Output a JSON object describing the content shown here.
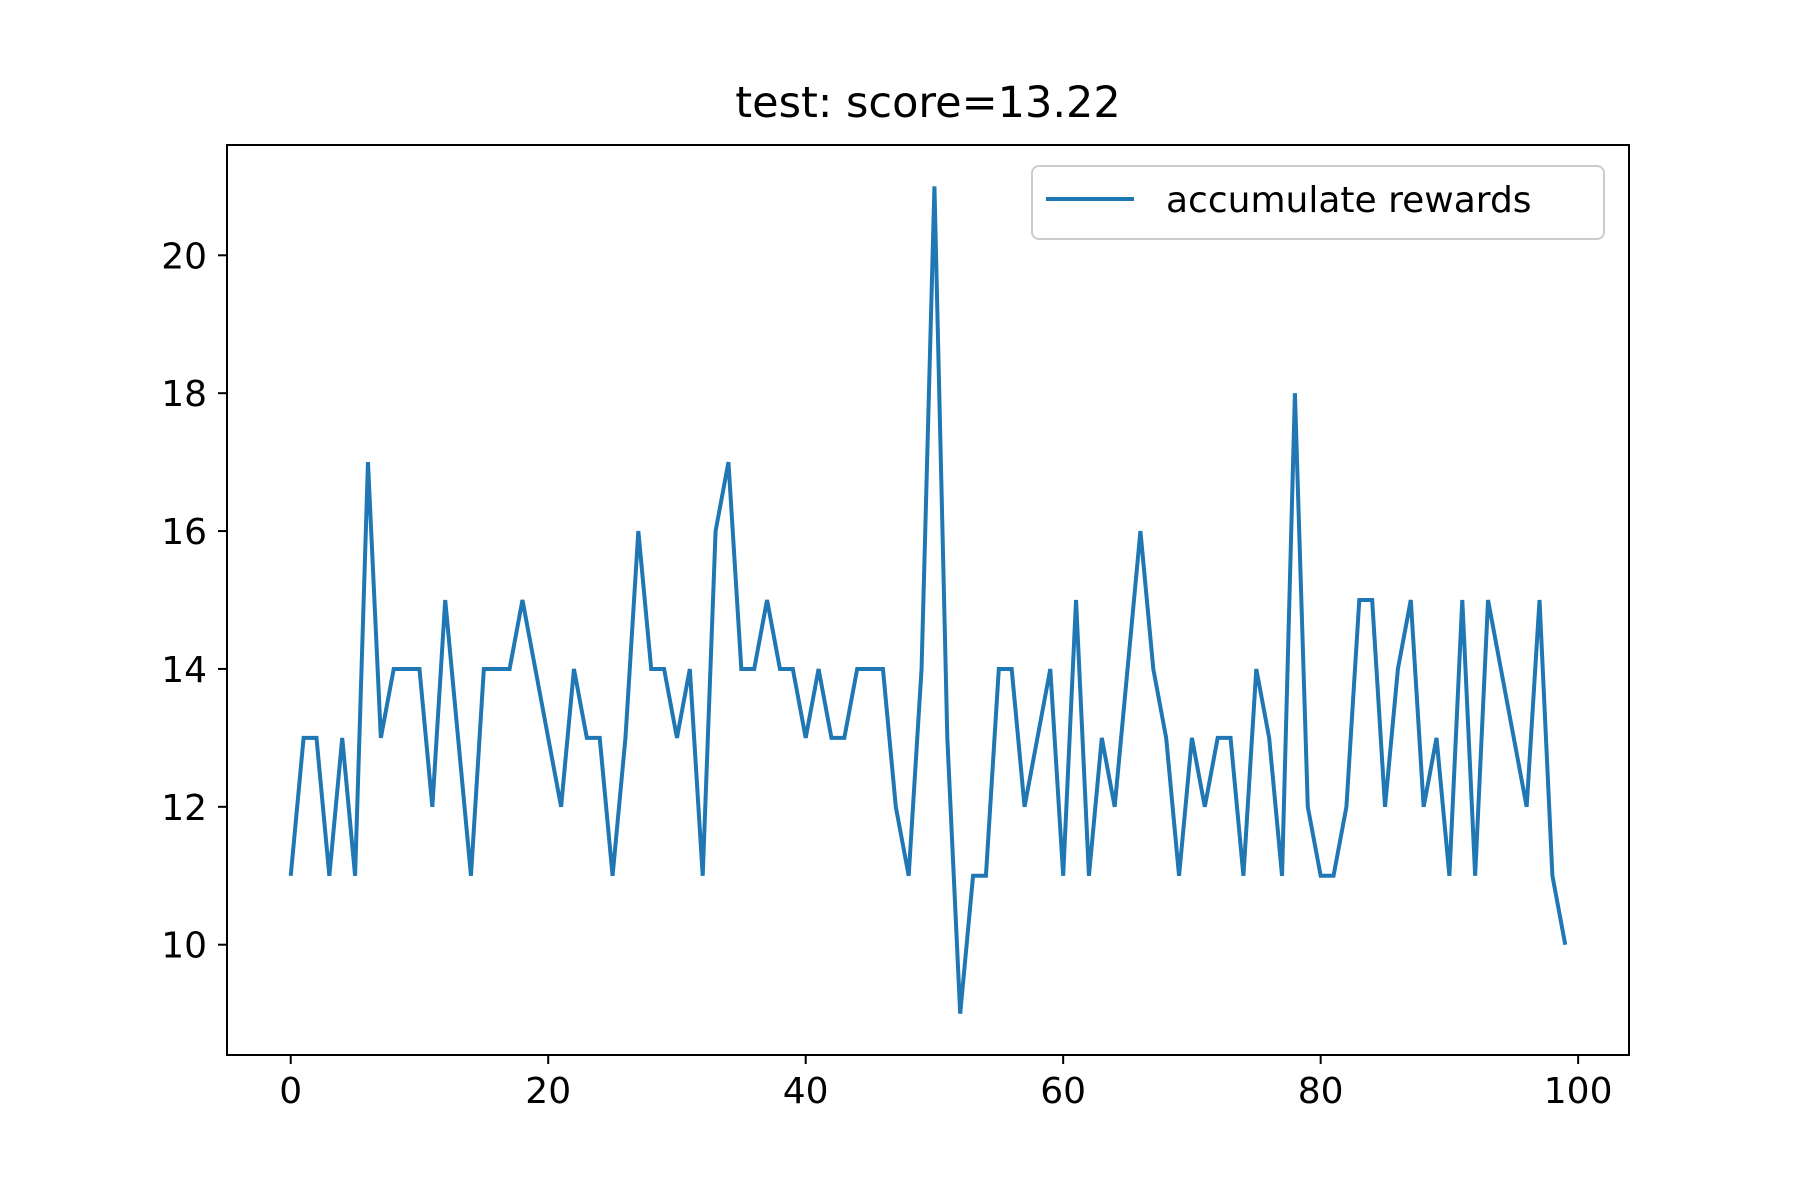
{
  "chart_data": {
    "type": "line",
    "title": "test: score=13.22",
    "xlabel": "",
    "ylabel": "",
    "xlim": [
      -4.95,
      103.95
    ],
    "ylim": [
      8.4,
      21.6
    ],
    "xticks": [
      0,
      20,
      40,
      60,
      80,
      100
    ],
    "yticks": [
      10,
      12,
      14,
      16,
      18,
      20
    ],
    "grid": false,
    "legend_position": "upper right",
    "colors": {
      "series": "#1f77b4",
      "axes": "#000000",
      "legend_border": "#cccccc"
    },
    "series": [
      {
        "name": "accumulate rewards",
        "x": [
          0,
          1,
          2,
          3,
          4,
          5,
          6,
          7,
          8,
          9,
          10,
          11,
          12,
          13,
          14,
          15,
          16,
          17,
          18,
          19,
          20,
          21,
          22,
          23,
          24,
          25,
          26,
          27,
          28,
          29,
          30,
          31,
          32,
          33,
          34,
          35,
          36,
          37,
          38,
          39,
          40,
          41,
          42,
          43,
          44,
          45,
          46,
          47,
          48,
          49,
          50,
          51,
          52,
          53,
          54,
          55,
          56,
          57,
          58,
          59,
          60,
          61,
          62,
          63,
          64,
          65,
          66,
          67,
          68,
          69,
          70,
          71,
          72,
          73,
          74,
          75,
          76,
          77,
          78,
          79,
          80,
          81,
          82,
          83,
          84,
          85,
          86,
          87,
          88,
          89,
          90,
          91,
          92,
          93,
          94,
          95,
          96,
          97,
          98,
          99
        ],
        "values": [
          11,
          13,
          13,
          11,
          13,
          11,
          17,
          13,
          14,
          14,
          14,
          12,
          15,
          13,
          11,
          14,
          14,
          14,
          15,
          14,
          13,
          12,
          14,
          13,
          13,
          11,
          13,
          16,
          14,
          14,
          13,
          14,
          11,
          16,
          17,
          14,
          14,
          15,
          14,
          14,
          13,
          14,
          13,
          13,
          14,
          14,
          14,
          12,
          11,
          14,
          21,
          13,
          9,
          11,
          11,
          14,
          14,
          12,
          13,
          14,
          11,
          15,
          11,
          13,
          12,
          14,
          16,
          14,
          13,
          11,
          13,
          12,
          13,
          13,
          11,
          14,
          13,
          11,
          18,
          12,
          11,
          11,
          12,
          15,
          15,
          12,
          14,
          15,
          12,
          13,
          11,
          15,
          11,
          15,
          14,
          13,
          12,
          15,
          11,
          10
        ]
      }
    ]
  }
}
